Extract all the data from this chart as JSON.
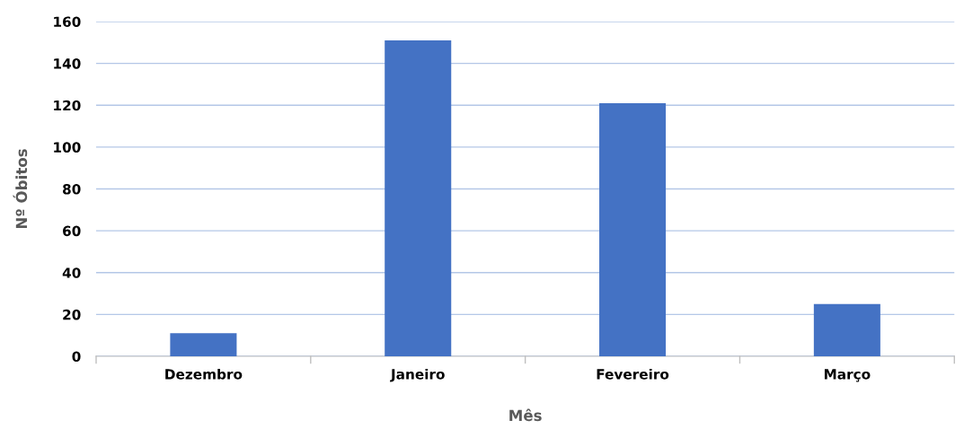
{
  "chart_data": {
    "type": "bar",
    "xlabel": "Mês",
    "ylabel": "Nº Óbitos",
    "categories": [
      "Dezembro",
      "Janeiro",
      "Fevereiro",
      "Março"
    ],
    "values": [
      11,
      151,
      121,
      25
    ],
    "color": "#4472c4",
    "ylim": [
      0,
      160
    ],
    "yticks": [
      0,
      20,
      40,
      60,
      80,
      100,
      120,
      140,
      160
    ],
    "grid": "y"
  }
}
